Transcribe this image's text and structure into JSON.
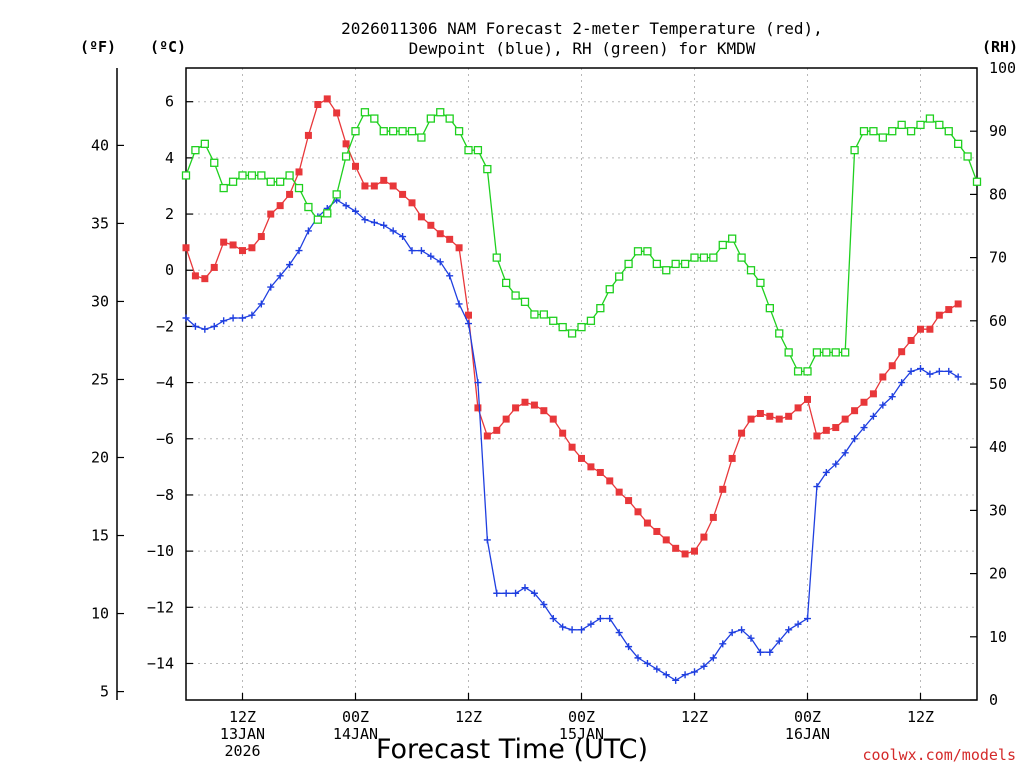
{
  "chart_data": {
    "type": "line",
    "title_line1": "2026011306 NAM Forecast 2-meter Temperature (red),",
    "title_line2": "Dewpoint (blue), RH (green) for KMDW",
    "xlabel": "Forecast Time (UTC)",
    "credit": "coolwx.com/models",
    "left_outer_unit": "(ºF)",
    "left_inner_unit": "(ºC)",
    "right_unit": "(RH)",
    "x_hours_range": [
      0,
      84
    ],
    "celsius_range": [
      -15.3,
      7.2
    ],
    "rh_range": [
      0,
      100
    ],
    "celsius_ticks": [
      6,
      4,
      2,
      0,
      -2,
      -4,
      -6,
      -8,
      -10,
      -12,
      -14
    ],
    "fahrenheit_ticks": [
      40,
      35,
      30,
      25,
      20,
      15,
      10,
      5
    ],
    "rh_ticks": [
      100,
      90,
      80,
      70,
      60,
      50,
      40,
      30,
      20,
      10,
      0
    ],
    "x_ticks": [
      {
        "hour": 6,
        "lines": [
          "12Z",
          "13JAN",
          "2026"
        ]
      },
      {
        "hour": 18,
        "lines": [
          "00Z",
          "14JAN"
        ]
      },
      {
        "hour": 30,
        "lines": [
          "12Z"
        ]
      },
      {
        "hour": 42,
        "lines": [
          "00Z",
          "15JAN"
        ]
      },
      {
        "hour": 54,
        "lines": [
          "12Z"
        ]
      },
      {
        "hour": 66,
        "lines": [
          "00Z",
          "16JAN"
        ]
      },
      {
        "hour": 78,
        "lines": [
          "12Z"
        ]
      }
    ],
    "series": [
      {
        "name": "Temperature",
        "color": "#e8373a",
        "marker": "filled-square",
        "values": [
          0.8,
          -0.2,
          -0.3,
          0.1,
          1.0,
          0.9,
          0.7,
          0.8,
          1.2,
          2.0,
          2.3,
          2.7,
          3.5,
          4.8,
          5.9,
          6.1,
          5.6,
          4.5,
          3.7,
          3.0,
          3.0,
          3.2,
          3.0,
          2.7,
          2.4,
          1.9,
          1.6,
          1.3,
          1.1,
          0.8,
          -1.6,
          -4.9,
          -5.9,
          -5.7,
          -5.3,
          -4.9,
          -4.7,
          -4.8,
          -5.0,
          -5.3,
          -5.8,
          -6.3,
          -6.7,
          -7.0,
          -7.2,
          -7.5,
          -7.9,
          -8.2,
          -8.6,
          -9.0,
          -9.3,
          -9.6,
          -9.9,
          -10.1,
          -10.0,
          -9.5,
          -8.8,
          -7.8,
          -6.7,
          -5.8,
          -5.3,
          -5.1,
          -5.2,
          -5.3,
          -5.2,
          -4.9,
          -4.6,
          -5.9,
          -5.7,
          -5.6,
          -5.3,
          -5.0,
          -4.7,
          -4.4,
          -3.8,
          -3.4,
          -2.9,
          -2.5,
          -2.1,
          -2.1,
          -1.6,
          -1.4,
          -1.2
        ]
      },
      {
        "name": "Dewpoint",
        "color": "#1f3fe0",
        "marker": "plus",
        "values": [
          -1.7,
          -2.0,
          -2.1,
          -2.0,
          -1.8,
          -1.7,
          -1.7,
          -1.6,
          -1.2,
          -0.6,
          -0.2,
          0.2,
          0.7,
          1.4,
          1.9,
          2.2,
          2.5,
          2.3,
          2.1,
          1.8,
          1.7,
          1.6,
          1.4,
          1.2,
          0.7,
          0.7,
          0.5,
          0.3,
          -0.2,
          -1.2,
          -1.9,
          -4.0,
          -9.6,
          -11.5,
          -11.5,
          -11.5,
          -11.3,
          -11.5,
          -11.9,
          -12.4,
          -12.7,
          -12.8,
          -12.8,
          -12.6,
          -12.4,
          -12.4,
          -12.9,
          -13.4,
          -13.8,
          -14.0,
          -14.2,
          -14.4,
          -14.6,
          -14.4,
          -14.3,
          -14.1,
          -13.8,
          -13.3,
          -12.9,
          -12.8,
          -13.1,
          -13.6,
          -13.6,
          -13.2,
          -12.8,
          -12.6,
          -12.4,
          -7.7,
          -7.2,
          -6.9,
          -6.5,
          -6.0,
          -5.6,
          -5.2,
          -4.8,
          -4.5,
          -4.0,
          -3.6,
          -3.5,
          -3.7,
          -3.6,
          -3.6,
          -3.8
        ]
      },
      {
        "name": "RH",
        "color": "#1fd01f",
        "marker": "open-square",
        "values": [
          83,
          87,
          88,
          85,
          81,
          82,
          83,
          83,
          83,
          82,
          82,
          83,
          81,
          78,
          76,
          77,
          80,
          86,
          90,
          93,
          92,
          90,
          90,
          90,
          90,
          89,
          92,
          93,
          92,
          90,
          87,
          87,
          84,
          70,
          66,
          64,
          63,
          61,
          61,
          60,
          59,
          58,
          59,
          60,
          62,
          65,
          67,
          69,
          71,
          71,
          69,
          68,
          69,
          69,
          70,
          70,
          70,
          72,
          73,
          70,
          68,
          66,
          62,
          58,
          55,
          52,
          52,
          55,
          55,
          55,
          55,
          87,
          90,
          90,
          89,
          90,
          91,
          90,
          91,
          92,
          91,
          90,
          88,
          86,
          82
        ]
      }
    ]
  }
}
